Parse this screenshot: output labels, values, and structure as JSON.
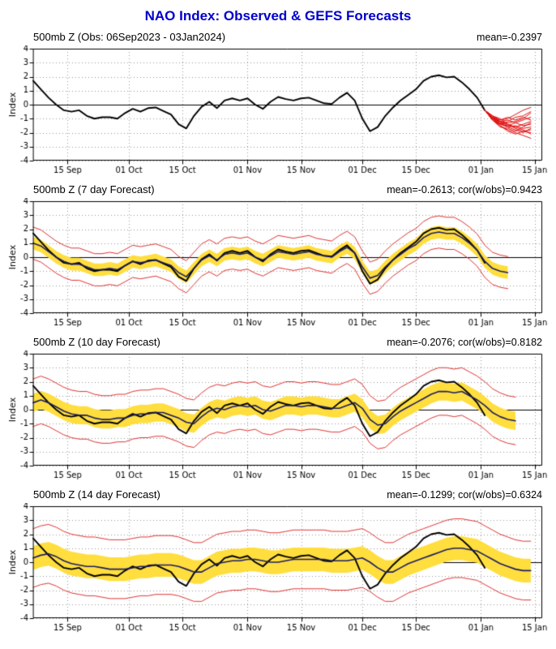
{
  "page_title": "NAO Index: Observed & GEFS Forecasts",
  "colors": {
    "title": "#0000cc",
    "observed": "#000000",
    "forecast_mean": "#1c1c64",
    "ensemble": "#e01010",
    "envelope": "#e03434",
    "band": "#ffde3d",
    "grid": "#999999"
  },
  "axis": {
    "ylabel": "Index",
    "ymin": -4,
    "ymax": 4,
    "yticks": [
      -4,
      -3,
      -2,
      -1,
      0,
      1,
      2,
      3,
      4
    ],
    "xmin": 0,
    "xmax": 133,
    "xticks": [
      {
        "day": 9,
        "label": "15 Sep"
      },
      {
        "day": 25,
        "label": "01 Oct"
      },
      {
        "day": 39,
        "label": "15 Oct"
      },
      {
        "day": 56,
        "label": "01 Nov"
      },
      {
        "day": 70,
        "label": "15 Nov"
      },
      {
        "day": 86,
        "label": "01 Dec"
      },
      {
        "day": 100,
        "label": "15 Dec"
      },
      {
        "day": 117,
        "label": "01 Jan"
      },
      {
        "day": 131,
        "label": "15 Jan"
      }
    ]
  },
  "chart_data": {
    "type": "line",
    "x_unit": "days since 06 Sep 2023",
    "day_start": 0,
    "day_step": 2,
    "observed": [
      1.7,
      1.1,
      0.5,
      0.0,
      -0.4,
      -0.5,
      -0.4,
      -0.8,
      -1.0,
      -0.9,
      -0.9,
      -1.0,
      -0.6,
      -0.3,
      -0.5,
      -0.25,
      -0.2,
      -0.45,
      -0.7,
      -1.4,
      -1.7,
      -0.8,
      -0.15,
      0.2,
      -0.25,
      0.3,
      0.45,
      0.3,
      0.45,
      0.0,
      -0.3,
      0.2,
      0.55,
      0.4,
      0.3,
      0.45,
      0.5,
      0.3,
      0.1,
      0.05,
      0.5,
      0.85,
      0.3,
      -1.0,
      -1.9,
      -1.6,
      -0.8,
      -0.2,
      0.3,
      0.7,
      1.1,
      1.7,
      2.0,
      2.1,
      1.95,
      2.0,
      1.6,
      1.1,
      0.5,
      -0.4
    ],
    "panels": [
      {
        "title": "500mb Z (Obs: 06Sep2023 - 03Jan2024)",
        "stats": "mean=-0.2397",
        "ensemble": {
          "x_start": 118,
          "x_step": 2,
          "members": [
            [
              -0.4,
              -0.9,
              -1.2,
              -1.3,
              -1.2,
              -1.0,
              -0.6
            ],
            [
              -0.4,
              -1.0,
              -1.4,
              -1.5,
              -1.6,
              -1.4,
              -1.2
            ],
            [
              -0.4,
              -0.8,
              -1.1,
              -1.0,
              -0.7,
              -0.4,
              -0.2
            ],
            [
              -0.4,
              -1.1,
              -1.5,
              -1.8,
              -2.0,
              -2.2,
              -2.4
            ],
            [
              -0.4,
              -0.9,
              -1.3,
              -1.6,
              -1.5,
              -1.7,
              -1.6
            ],
            [
              -0.4,
              -1.0,
              -1.2,
              -1.1,
              -1.3,
              -1.1,
              -0.9
            ],
            [
              -0.4,
              -0.8,
              -1.0,
              -1.4,
              -1.7,
              -1.9,
              -1.8
            ],
            [
              -0.4,
              -1.1,
              -1.6,
              -1.7,
              -1.9,
              -1.6,
              -1.3
            ],
            [
              -0.4,
              -0.9,
              -1.4,
              -1.2,
              -0.9,
              -0.8,
              -0.5
            ],
            [
              -0.4,
              -1.0,
              -1.5,
              -1.9,
              -2.1,
              -1.9,
              -2.0
            ],
            [
              -0.4,
              -0.8,
              -1.2,
              -1.5,
              -1.3,
              -1.5,
              -1.4
            ],
            [
              -0.4,
              -1.1,
              -1.4,
              -1.6,
              -1.8,
              -2.0,
              -1.7
            ],
            [
              -0.4,
              -0.9,
              -1.1,
              -0.9,
              -1.1,
              -0.9,
              -1.1
            ],
            [
              -0.4,
              -1.0,
              -1.3,
              -1.4,
              -1.6,
              -1.8,
              -2.1
            ]
          ]
        }
      },
      {
        "title": "500mb Z (7 day Forecast)",
        "stats": "mean=-0.2613; cor(w/obs)=0.9423",
        "mean": [
          1.0,
          0.8,
          0.4,
          0.0,
          -0.3,
          -0.5,
          -0.5,
          -0.7,
          -0.9,
          -0.9,
          -0.8,
          -0.9,
          -0.6,
          -0.3,
          -0.4,
          -0.3,
          -0.2,
          -0.4,
          -0.6,
          -1.1,
          -1.4,
          -0.8,
          -0.2,
          0.1,
          -0.2,
          0.2,
          0.3,
          0.2,
          0.3,
          0.0,
          -0.2,
          0.1,
          0.4,
          0.3,
          0.2,
          0.3,
          0.4,
          0.2,
          0.1,
          0.0,
          0.4,
          0.7,
          0.3,
          -0.7,
          -1.5,
          -1.3,
          -0.7,
          -0.2,
          0.2,
          0.6,
          0.9,
          1.4,
          1.7,
          1.8,
          1.7,
          1.7,
          1.4,
          1.0,
          0.5,
          -0.3,
          -0.8,
          -1.0,
          -1.1
        ],
        "band_halfwidth": 0.45,
        "env_halfwidth": 1.15
      },
      {
        "title": "500mb Z (10 day Forecast)",
        "stats": "mean=-0.2076; cor(w/obs)=0.8182",
        "mean": [
          0.5,
          0.7,
          0.5,
          0.2,
          -0.1,
          -0.3,
          -0.4,
          -0.4,
          -0.6,
          -0.7,
          -0.7,
          -0.6,
          -0.6,
          -0.4,
          -0.3,
          -0.3,
          -0.2,
          -0.2,
          -0.4,
          -0.6,
          -0.9,
          -1.0,
          -0.5,
          -0.1,
          0.1,
          0.0,
          0.2,
          0.3,
          0.2,
          0.3,
          0.0,
          -0.1,
          0.1,
          0.3,
          0.3,
          0.2,
          0.3,
          0.3,
          0.2,
          0.1,
          0.1,
          0.3,
          0.5,
          0.1,
          -0.7,
          -1.1,
          -1.0,
          -0.5,
          -0.1,
          0.2,
          0.5,
          0.8,
          1.1,
          1.3,
          1.3,
          1.2,
          1.3,
          1.0,
          0.7,
          0.3,
          -0.2,
          -0.5,
          -0.7,
          -0.8
        ],
        "band_halfwidth": 0.65,
        "env_halfwidth": 1.7
      },
      {
        "title": "500mb Z (14 day Forecast)",
        "stats": "mean=-0.1299; cor(w/obs)=0.6324",
        "mean": [
          0.3,
          0.5,
          0.6,
          0.4,
          0.1,
          -0.1,
          -0.2,
          -0.3,
          -0.3,
          -0.4,
          -0.5,
          -0.5,
          -0.5,
          -0.4,
          -0.3,
          -0.3,
          -0.2,
          -0.2,
          -0.2,
          -0.3,
          -0.5,
          -0.7,
          -0.7,
          -0.4,
          -0.1,
          0.0,
          0.1,
          0.1,
          0.2,
          0.2,
          0.1,
          0.0,
          0.0,
          0.1,
          0.2,
          0.2,
          0.2,
          0.2,
          0.2,
          0.1,
          0.1,
          0.1,
          0.2,
          0.3,
          0.0,
          -0.4,
          -0.7,
          -0.7,
          -0.4,
          -0.1,
          0.1,
          0.3,
          0.5,
          0.7,
          0.9,
          1.0,
          1.0,
          0.9,
          0.8,
          0.5,
          0.2,
          -0.1,
          -0.3,
          -0.5,
          -0.6,
          -0.6
        ],
        "band_halfwidth": 0.85,
        "env_halfwidth": 2.1
      }
    ]
  }
}
